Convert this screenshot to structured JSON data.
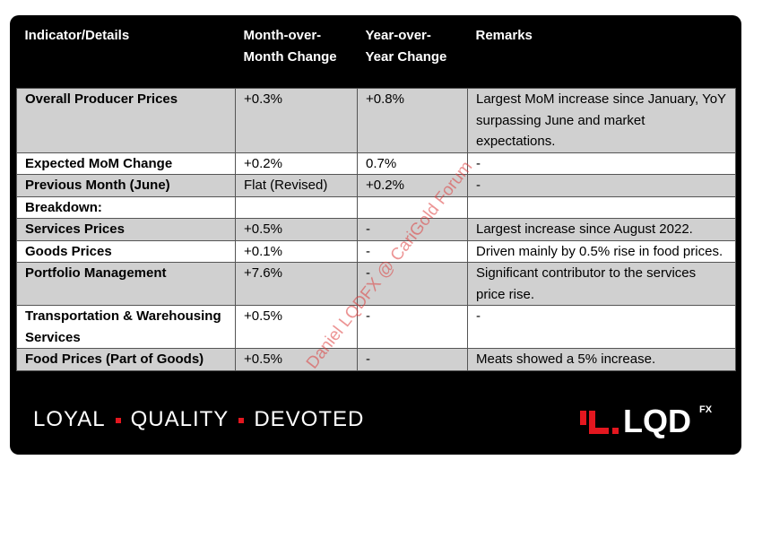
{
  "table": {
    "header": [
      "Indicator/Details",
      "Month-over-Month Change",
      "Year-over-Year Change",
      "Remarks"
    ],
    "rows": [
      [
        "Overall Producer Prices",
        "+0.3%",
        "+0.8%",
        "Largest MoM increase since January, YoY surpassing June and market expectations."
      ],
      [
        "Expected MoM Change",
        "+0.2%",
        "0.7%",
        "-"
      ],
      [
        "Previous Month (June)",
        "Flat (Revised)",
        "+0.2%",
        "-"
      ],
      [
        "Breakdown:",
        null,
        null,
        null
      ],
      [
        "Services Prices",
        "+0.5%",
        "-",
        "Largest increase since August 2022."
      ],
      [
        "Goods Prices",
        "+0.1%",
        "-",
        "Driven mainly by 0.5% rise in food prices."
      ],
      [
        "Portfolio Management",
        "+7.6%",
        "-",
        "Significant contributor to the services price rise."
      ],
      [
        "Transportation & Warehousing Services",
        "+0.5%",
        "-",
        "-"
      ],
      [
        "Food Prices (Part of Goods)",
        "+0.5%",
        "-",
        "Meats showed a 5% increase."
      ]
    ]
  },
  "footer": {
    "slogan": [
      "LOYAL",
      "QUALITY",
      "DEVOTED"
    ],
    "logo": "LQD",
    "logo_sup": "FX"
  },
  "watermark": "Daniel LQDFX @ CariGold Forum"
}
